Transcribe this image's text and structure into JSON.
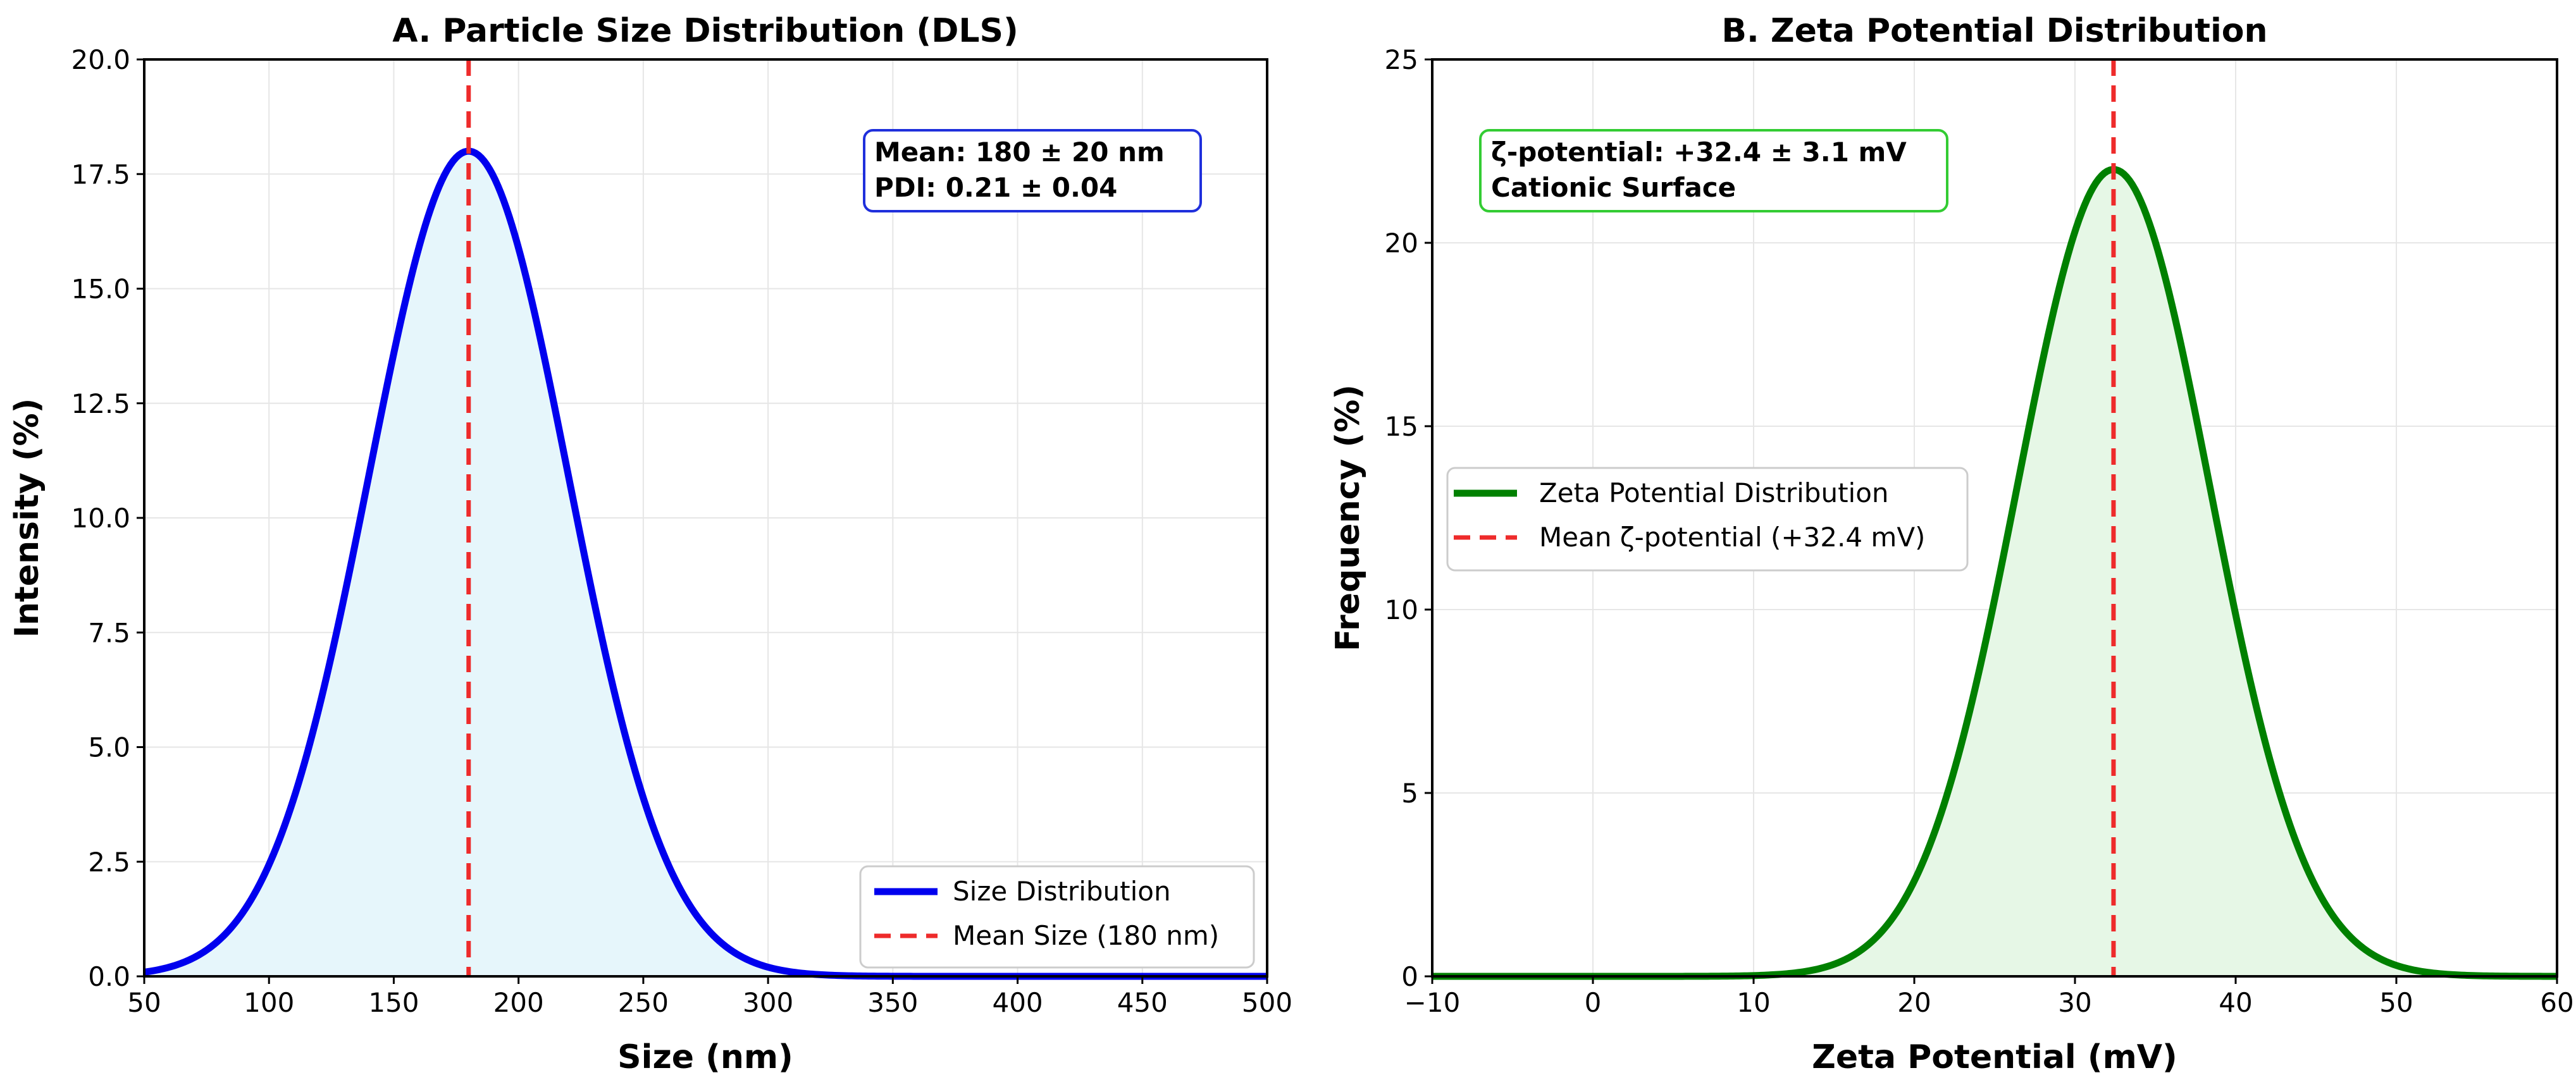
{
  "chart_data": [
    {
      "type": "area",
      "title": "A. Particle Size Distribution (DLS)",
      "xlabel": "Size (nm)",
      "ylabel": "Intensity (%)",
      "xlim": [
        50,
        500
      ],
      "ylim": [
        0,
        20
      ],
      "xticks": [
        "50",
        "100",
        "150",
        "200",
        "250",
        "300",
        "350",
        "400",
        "450",
        "500"
      ],
      "yticks": [
        "0.0",
        "2.5",
        "5.0",
        "7.5",
        "10.0",
        "12.5",
        "15.0",
        "17.5",
        "20.0"
      ],
      "grid": true,
      "series": [
        {
          "name": "Size Distribution",
          "kind": "gaussian",
          "mean": 180,
          "sd": 40,
          "peak": 18,
          "color": "#0000ee",
          "fill": "#e6f6fb"
        }
      ],
      "vline": {
        "name": "Mean Size (180 nm)",
        "x": 180,
        "color": "#ee2b2b"
      },
      "annotation": {
        "lines": [
          "Mean: 180 ± 20 nm",
          "PDI: 0.21 ± 0.04"
        ],
        "border_color": "#1f2fdc",
        "placement": "top-right"
      },
      "legend": {
        "placement": "lower-right",
        "entries": [
          "Size Distribution",
          "Mean Size (180 nm)"
        ]
      }
    },
    {
      "type": "area",
      "title": "B. Zeta Potential Distribution",
      "xlabel": "Zeta Potential (mV)",
      "ylabel": "Frequency (%)",
      "xlim": [
        -10,
        60
      ],
      "ylim": [
        0,
        25
      ],
      "xticks": [
        "−10",
        "0",
        "10",
        "20",
        "30",
        "40",
        "50",
        "60"
      ],
      "yticks": [
        "0",
        "5",
        "10",
        "15",
        "20",
        "25"
      ],
      "grid": true,
      "series": [
        {
          "name": "Zeta Potential Distribution",
          "kind": "gaussian",
          "mean": 32.4,
          "sd": 6,
          "peak": 22,
          "color": "#008000",
          "fill": "#e6f7e6"
        }
      ],
      "vline": {
        "name": "Mean ζ-potential (+32.4 mV)",
        "x": 32.4,
        "color": "#ee2b2b"
      },
      "annotation": {
        "lines": [
          "ζ-potential: +32.4 ± 3.1 mV",
          "Cationic Surface"
        ],
        "border_color": "#33cc33",
        "placement": "top-left"
      },
      "legend": {
        "placement": "center-left",
        "entries": [
          "Zeta Potential Distribution",
          "Mean ζ-potential (+32.4 mV)"
        ]
      }
    }
  ]
}
